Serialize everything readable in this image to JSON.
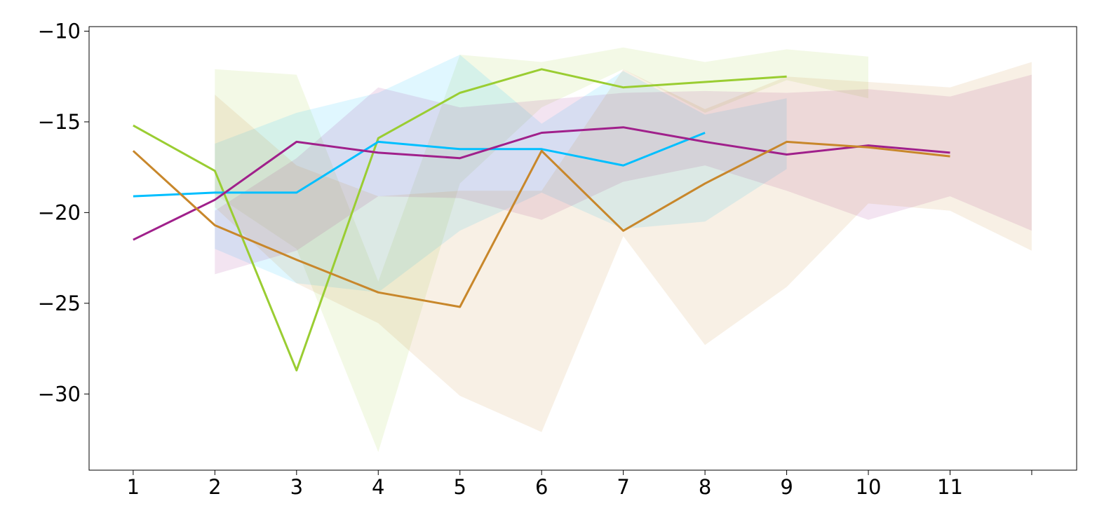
{
  "chart_data": {
    "type": "line",
    "title": "",
    "xlabel": "",
    "ylabel": "",
    "xlim": [
      0.46,
      12.55
    ],
    "ylim": [
      -34.2,
      -9.75
    ],
    "x_ticks": [
      1,
      2,
      3,
      4,
      5,
      6,
      7,
      8,
      9,
      10,
      11,
      12
    ],
    "x_tick_labels": [
      "1",
      "2",
      "3",
      "4",
      "5",
      "6",
      "7",
      "8",
      "9",
      "10",
      "11",
      ""
    ],
    "y_ticks": [
      -10,
      -15,
      -20,
      -25,
      -30
    ],
    "y_tick_labels": [
      "−10",
      "−15",
      "−20",
      "−25",
      "−30"
    ],
    "grid": false,
    "series": [
      {
        "color": "#9ACD32",
        "x": [
          1,
          2,
          3,
          4,
          5,
          6,
          7,
          8,
          9
        ],
        "values": [
          -15.2,
          -17.7,
          -28.7,
          -15.9,
          -13.4,
          -12.1,
          -13.1,
          -12.8,
          -12.5
        ],
        "band_x": [
          2,
          3,
          4,
          5,
          6,
          7,
          8,
          9,
          10
        ],
        "band_upper": [
          -12.1,
          -12.4,
          -23.8,
          -11.3,
          -11.7,
          -10.9,
          -11.7,
          -11.0,
          -11.4
        ],
        "band_lower": [
          -19.0,
          -22.0,
          -33.2,
          -18.4,
          -14.2,
          -12.1,
          -14.5,
          -12.7,
          -13.7
        ]
      },
      {
        "color": "#00BFFF",
        "x": [
          1,
          2,
          3,
          4,
          5,
          6,
          7,
          8
        ],
        "values": [
          -19.1,
          -18.9,
          -18.9,
          -16.1,
          -16.5,
          -16.5,
          -17.4,
          -15.6
        ],
        "band_x": [
          2,
          3,
          4,
          5,
          6,
          7,
          8,
          9
        ],
        "band_upper": [
          -16.2,
          -14.5,
          -13.4,
          -11.3,
          -15.1,
          -12.2,
          -14.6,
          -13.7
        ],
        "band_lower": [
          -22.0,
          -23.9,
          -24.4,
          -21.0,
          -18.9,
          -20.9,
          -20.5,
          -17.6
        ]
      },
      {
        "color": "#A0208B",
        "x": [
          1,
          2,
          3,
          4,
          5,
          6,
          7,
          8,
          9,
          10,
          11
        ],
        "values": [
          -21.5,
          -19.3,
          -16.1,
          -16.7,
          -17.0,
          -15.6,
          -15.3,
          -16.1,
          -16.8,
          -16.3,
          -16.7
        ],
        "band_x": [
          2,
          3,
          4,
          5,
          6,
          7,
          8,
          9,
          10,
          11,
          12
        ],
        "band_upper": [
          -19.9,
          -17.0,
          -13.1,
          -14.2,
          -13.8,
          -13.4,
          -13.3,
          -13.4,
          -13.2,
          -13.6,
          -12.4
        ],
        "band_lower": [
          -23.4,
          -22.1,
          -19.1,
          -19.2,
          -20.4,
          -18.3,
          -17.4,
          -18.8,
          -20.4,
          -19.1,
          -21.0
        ]
      },
      {
        "color": "#C8872B",
        "x": [
          1,
          2,
          3,
          4,
          5,
          6,
          7,
          8,
          9,
          10,
          11
        ],
        "values": [
          -16.6,
          -20.7,
          -22.6,
          -24.4,
          -25.2,
          -16.6,
          -21.0,
          -18.4,
          -16.1,
          -16.4,
          -16.9
        ],
        "band_x": [
          2,
          3,
          4,
          5,
          6,
          7,
          8,
          9,
          10,
          11,
          12
        ],
        "band_upper": [
          -13.5,
          -17.4,
          -19.1,
          -18.8,
          -18.8,
          -12.1,
          -14.3,
          -12.5,
          -12.8,
          -13.1,
          -11.7
        ],
        "band_lower": [
          -19.7,
          -23.9,
          -26.1,
          -30.1,
          -32.1,
          -21.3,
          -27.3,
          -24.1,
          -19.5,
          -19.9,
          -22.1
        ]
      }
    ]
  }
}
